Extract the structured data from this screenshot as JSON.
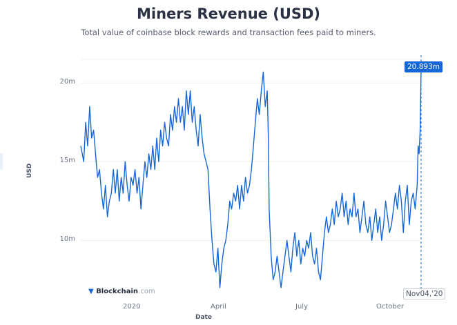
{
  "title": "Miners Revenue (USD)",
  "subtitle": "Total value of coinbase block rewards and transaction fees paid to miners.",
  "brand": "Blockchain",
  "brand_suffix": ".com",
  "tooltip": {
    "value": "20.893m",
    "date": "Nov04,'20"
  },
  "colors": {
    "line": "#1566d6",
    "grid": "#eef0f4",
    "title": "#2a3142"
  },
  "chart_data": {
    "type": "line",
    "title": "Miners Revenue (USD)",
    "xlabel": "Date",
    "ylabel": "USD",
    "ylim": [
      6.6,
      21.5
    ],
    "y_ticks": [
      10,
      15,
      20
    ],
    "y_tick_labels": [
      "10m",
      "15m",
      "20m"
    ],
    "x_ticks": [
      "2020",
      "April",
      "July",
      "October"
    ],
    "x_range": [
      "2019-11-04",
      "2020-11-04"
    ],
    "grid": true,
    "series": [
      {
        "values": [
          [
            0,
            16.0
          ],
          [
            3,
            15.0
          ],
          [
            5,
            17.5
          ],
          [
            7,
            16.0
          ],
          [
            9,
            18.5
          ],
          [
            11,
            16.5
          ],
          [
            13,
            17.0
          ],
          [
            15,
            15.5
          ],
          [
            17,
            14.0
          ],
          [
            19,
            14.5
          ],
          [
            21,
            13.0
          ],
          [
            23,
            12.0
          ],
          [
            25,
            13.5
          ],
          [
            27,
            11.5
          ],
          [
            29,
            12.5
          ],
          [
            31,
            13.0
          ],
          [
            33,
            14.5
          ],
          [
            35,
            13.0
          ],
          [
            37,
            14.5
          ],
          [
            39,
            12.5
          ],
          [
            41,
            14.0
          ],
          [
            43,
            13.0
          ],
          [
            45,
            15.0
          ],
          [
            47,
            13.5
          ],
          [
            49,
            12.5
          ],
          [
            51,
            14.0
          ],
          [
            53,
            13.5
          ],
          [
            55,
            14.5
          ],
          [
            57,
            13.0
          ],
          [
            59,
            14.0
          ],
          [
            61,
            12.0
          ],
          [
            63,
            13.5
          ],
          [
            65,
            15.0
          ],
          [
            67,
            14.0
          ],
          [
            69,
            15.5
          ],
          [
            71,
            14.5
          ],
          [
            73,
            16.0
          ],
          [
            75,
            14.5
          ],
          [
            77,
            16.5
          ],
          [
            79,
            15.0
          ],
          [
            81,
            17.0
          ],
          [
            83,
            16.0
          ],
          [
            85,
            17.5
          ],
          [
            87,
            16.5
          ],
          [
            89,
            16.0
          ],
          [
            91,
            18.0
          ],
          [
            93,
            17.0
          ],
          [
            95,
            18.5
          ],
          [
            97,
            17.5
          ],
          [
            99,
            19.0
          ],
          [
            101,
            17.5
          ],
          [
            103,
            18.5
          ],
          [
            105,
            17.0
          ],
          [
            107,
            19.5
          ],
          [
            109,
            18.0
          ],
          [
            111,
            19.5
          ],
          [
            113,
            17.5
          ],
          [
            115,
            18.5
          ],
          [
            117,
            17.0
          ],
          [
            119,
            16.0
          ],
          [
            121,
            18.0
          ],
          [
            123,
            16.5
          ],
          [
            125,
            15.5
          ],
          [
            127,
            15.0
          ],
          [
            129,
            14.5
          ],
          [
            131,
            12.0
          ],
          [
            133,
            10.0
          ],
          [
            135,
            8.5
          ],
          [
            137,
            8.0
          ],
          [
            139,
            9.5
          ],
          [
            141,
            7.0
          ],
          [
            143,
            8.5
          ],
          [
            145,
            9.5
          ],
          [
            147,
            10.0
          ],
          [
            149,
            11.0
          ],
          [
            151,
            12.5
          ],
          [
            153,
            12.0
          ],
          [
            155,
            13.0
          ],
          [
            157,
            12.5
          ],
          [
            159,
            13.5
          ],
          [
            161,
            12.0
          ],
          [
            163,
            13.5
          ],
          [
            165,
            12.5
          ],
          [
            167,
            14.0
          ],
          [
            169,
            13.0
          ],
          [
            171,
            13.5
          ],
          [
            173,
            14.5
          ],
          [
            175,
            16.0
          ],
          [
            177,
            17.5
          ],
          [
            179,
            19.0
          ],
          [
            181,
            18.0
          ],
          [
            183,
            19.5
          ],
          [
            185,
            20.7
          ],
          [
            187,
            18.5
          ],
          [
            189,
            19.5
          ],
          [
            190,
            17.0
          ],
          [
            191,
            12.0
          ],
          [
            193,
            9.0
          ],
          [
            195,
            7.5
          ],
          [
            197,
            8.0
          ],
          [
            199,
            9.0
          ],
          [
            201,
            8.0
          ],
          [
            203,
            7.0
          ],
          [
            205,
            8.0
          ],
          [
            207,
            9.0
          ],
          [
            209,
            10.0
          ],
          [
            211,
            9.0
          ],
          [
            213,
            8.0
          ],
          [
            215,
            9.5
          ],
          [
            217,
            10.5
          ],
          [
            219,
            9.0
          ],
          [
            221,
            10.0
          ],
          [
            223,
            8.5
          ],
          [
            225,
            9.5
          ],
          [
            227,
            9.0
          ],
          [
            229,
            10.0
          ],
          [
            231,
            9.5
          ],
          [
            233,
            10.5
          ],
          [
            235,
            9.0
          ],
          [
            237,
            8.5
          ],
          [
            239,
            9.5
          ],
          [
            241,
            8.0
          ],
          [
            243,
            7.5
          ],
          [
            245,
            9.0
          ],
          [
            247,
            10.5
          ],
          [
            249,
            11.5
          ],
          [
            251,
            10.5
          ],
          [
            253,
            11.0
          ],
          [
            255,
            12.0
          ],
          [
            257,
            11.0
          ],
          [
            259,
            12.5
          ],
          [
            261,
            11.5
          ],
          [
            263,
            12.0
          ],
          [
            265,
            13.0
          ],
          [
            267,
            11.5
          ],
          [
            269,
            12.5
          ],
          [
            271,
            11.0
          ],
          [
            273,
            12.0
          ],
          [
            275,
            11.5
          ],
          [
            277,
            13.0
          ],
          [
            279,
            11.5
          ],
          [
            281,
            12.0
          ],
          [
            283,
            10.5
          ],
          [
            285,
            11.5
          ],
          [
            287,
            12.5
          ],
          [
            289,
            11.0
          ],
          [
            291,
            10.5
          ],
          [
            293,
            11.5
          ],
          [
            295,
            10.0
          ],
          [
            297,
            11.0
          ],
          [
            299,
            12.0
          ],
          [
            301,
            10.5
          ],
          [
            303,
            11.5
          ],
          [
            305,
            10.0
          ],
          [
            307,
            11.0
          ],
          [
            309,
            12.5
          ],
          [
            311,
            11.5
          ],
          [
            313,
            10.5
          ],
          [
            315,
            11.0
          ],
          [
            317,
            12.0
          ],
          [
            319,
            13.0
          ],
          [
            321,
            12.0
          ],
          [
            323,
            13.5
          ],
          [
            325,
            12.5
          ],
          [
            327,
            10.5
          ],
          [
            329,
            12.5
          ],
          [
            331,
            13.5
          ],
          [
            333,
            11.0
          ],
          [
            335,
            12.5
          ],
          [
            337,
            13.0
          ],
          [
            339,
            12.0
          ],
          [
            341,
            13.5
          ],
          [
            342,
            16.0
          ],
          [
            343,
            15.5
          ],
          [
            344,
            17.0
          ],
          [
            345,
            20.893
          ]
        ]
      }
    ]
  }
}
